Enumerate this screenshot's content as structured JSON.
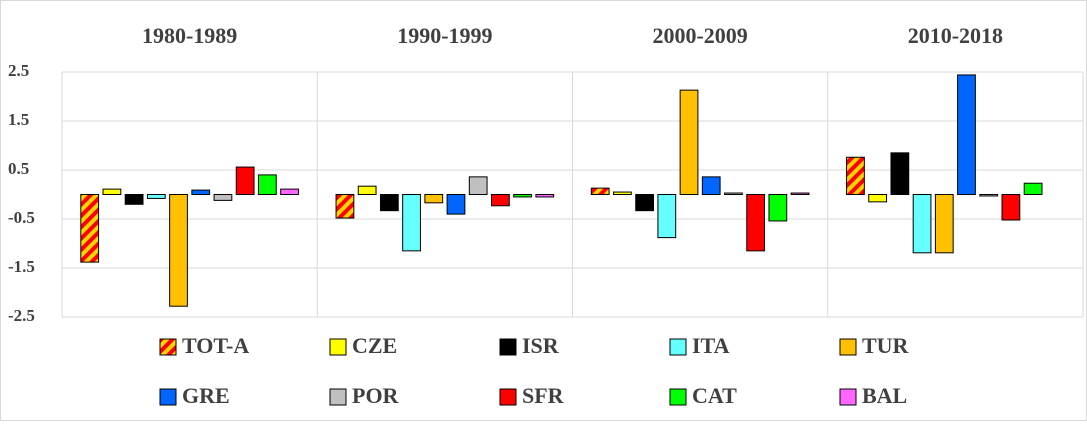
{
  "chart_data": {
    "type": "bar",
    "categories": [
      "1980-1989",
      "1990-1999",
      "2000-2009",
      "2010-2018"
    ],
    "ylim": [
      -2.5,
      2.5
    ],
    "yticks": [
      -2.5,
      -1.5,
      -0.5,
      0.5,
      1.5,
      2.5
    ],
    "grid": true,
    "series": [
      {
        "name": "TOT-A",
        "color": "#ffd700",
        "hatch": "#ff0000",
        "values": [
          -1.38,
          -0.48,
          0.13,
          0.76
        ]
      },
      {
        "name": "CZE",
        "color": "#ffff00",
        "values": [
          0.11,
          0.17,
          0.05,
          -0.15
        ]
      },
      {
        "name": "ISR",
        "color": "#000000",
        "values": [
          -0.2,
          -0.33,
          -0.33,
          0.85
        ]
      },
      {
        "name": "ITA",
        "color": "#66ffff",
        "values": [
          -0.08,
          -1.15,
          -0.88,
          -1.19
        ]
      },
      {
        "name": "TUR",
        "color": "#ffc000",
        "values": [
          -2.28,
          -0.17,
          2.13,
          -1.19
        ]
      },
      {
        "name": "GRE",
        "color": "#0066ff",
        "values": [
          0.09,
          -0.4,
          0.36,
          2.44
        ]
      },
      {
        "name": "POR",
        "color": "#c0c0c0",
        "values": [
          -0.12,
          0.36,
          0.03,
          -0.03
        ]
      },
      {
        "name": "SFR",
        "color": "#ff0000",
        "values": [
          0.56,
          -0.23,
          -1.15,
          -0.52
        ]
      },
      {
        "name": "CAT",
        "color": "#00ff00",
        "values": [
          0.4,
          -0.05,
          -0.54,
          0.23
        ]
      },
      {
        "name": "BAL",
        "color": "#ff66ff",
        "values": [
          0.11,
          -0.05,
          0.03,
          0
        ]
      }
    ]
  }
}
